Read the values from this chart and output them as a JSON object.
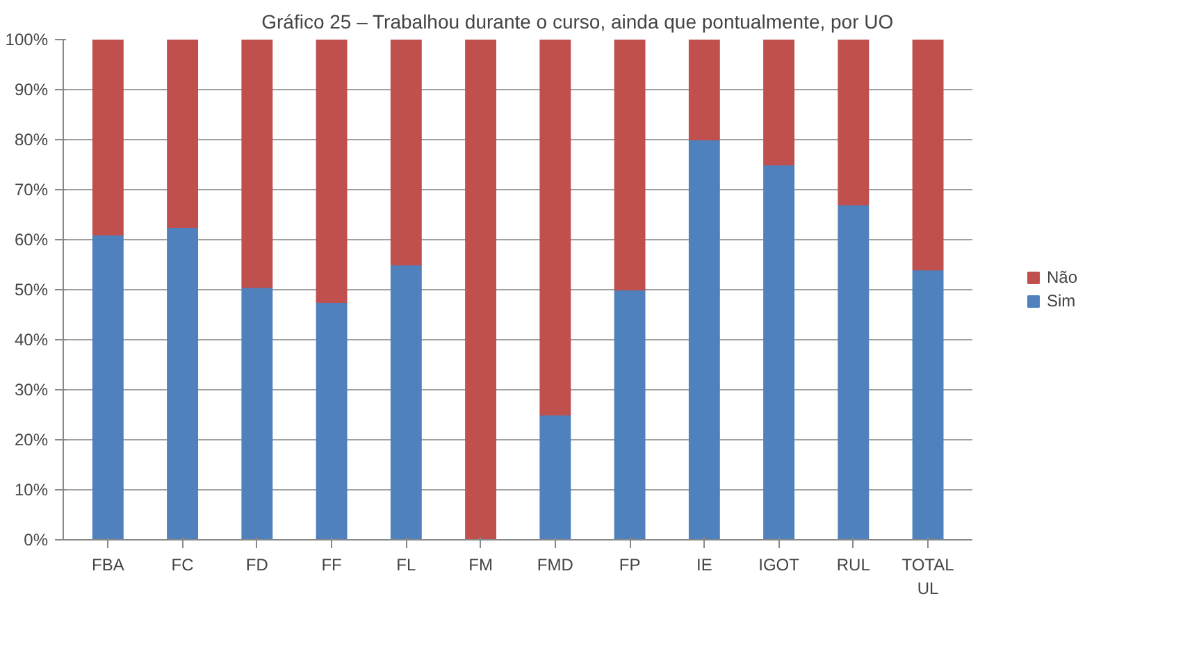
{
  "chart_data": {
    "type": "bar",
    "stacked": true,
    "title": "Gráfico 25 – Trabalhou durante o curso, ainda que pontualmente, por UO",
    "categories": [
      "FBA",
      "FC",
      "FD",
      "FF",
      "FL",
      "FM",
      "FMD",
      "FP",
      "IE",
      "IGOT",
      "RUL",
      "TOTAL UL"
    ],
    "series": [
      {
        "name": "Sim",
        "color": "#4f81bd",
        "values": [
          61,
          62.5,
          50.5,
          47.5,
          55,
          0,
          25,
          50,
          80,
          75,
          67,
          54
        ]
      },
      {
        "name": "Não",
        "color": "#c0504d",
        "values": [
          39,
          37.5,
          49.5,
          52.5,
          45,
          100,
          75,
          50,
          20,
          25,
          33,
          46
        ]
      }
    ],
    "ylim": [
      0,
      100
    ],
    "yticks": [
      {
        "value": 0,
        "label": "0%"
      },
      {
        "value": 10,
        "label": "10%"
      },
      {
        "value": 20,
        "label": "20%"
      },
      {
        "value": 30,
        "label": "30%"
      },
      {
        "value": 40,
        "label": "40%"
      },
      {
        "value": 50,
        "label": "50%"
      },
      {
        "value": 60,
        "label": "60%"
      },
      {
        "value": 70,
        "label": "70%"
      },
      {
        "value": 80,
        "label": "80%"
      },
      {
        "value": 90,
        "label": "90%"
      },
      {
        "value": 100,
        "label": "100%"
      }
    ],
    "grid": "y",
    "legend": "right"
  }
}
